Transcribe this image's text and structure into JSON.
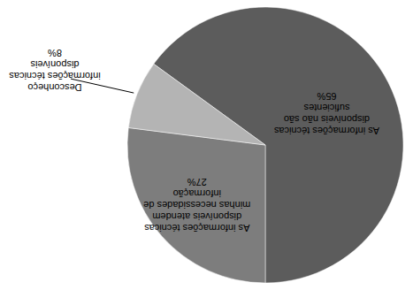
{
  "chart_data": {
    "type": "pie",
    "categories": [
      "As informações técnicas disponíveis não são suficientes",
      "As informações técnicas disponíveis atendem minhas necessidades de informação",
      "Desconheço informações técnicas disponíveis"
    ],
    "values": [
      65,
      27,
      8
    ],
    "value_labels": [
      "65%",
      "27%",
      "8%"
    ],
    "colors": [
      "#5c5c5c",
      "#7d7d7d",
      "#b4b4b4"
    ],
    "data_labels": true
  }
}
